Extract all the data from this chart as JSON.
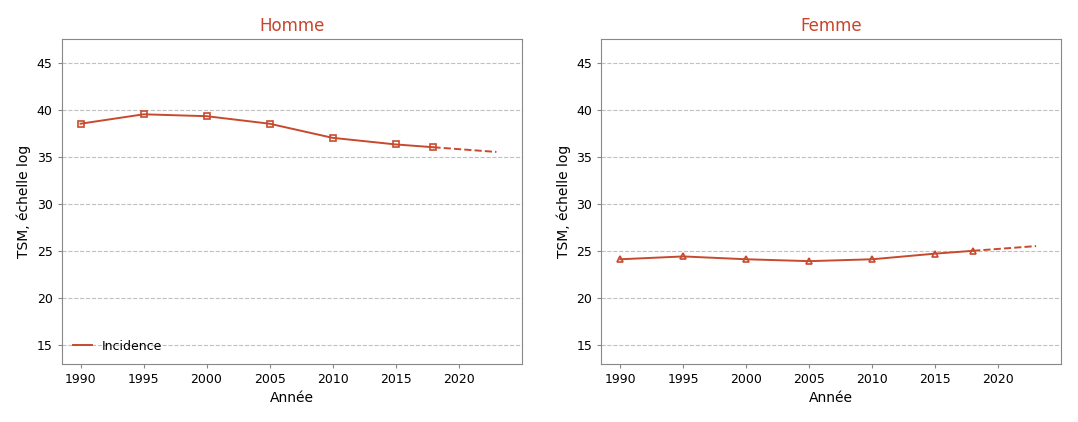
{
  "homme_title": "Homme",
  "femme_title": "Femme",
  "ylabel": "TSM, échelle log",
  "xlabel": "Année",
  "legend_label": "Incidence",
  "line_color": "#c84a2e",
  "homme_solid_years": [
    1990,
    1995,
    2000,
    2005,
    2010,
    2015,
    2018
  ],
  "homme_solid_values": [
    38.5,
    39.5,
    39.3,
    38.5,
    37.0,
    36.3,
    36.0
  ],
  "homme_dashed_years": [
    2018,
    2023
  ],
  "homme_dashed_values": [
    36.0,
    35.5
  ],
  "femme_solid_years": [
    1990,
    1995,
    2000,
    2005,
    2010,
    2015,
    2018
  ],
  "femme_solid_values": [
    24.1,
    24.4,
    24.1,
    23.9,
    24.1,
    24.7,
    25.0
  ],
  "femme_dashed_years": [
    2018,
    2023
  ],
  "femme_dashed_values": [
    25.0,
    25.5
  ],
  "yticks": [
    15,
    20,
    25,
    30,
    35,
    40,
    45
  ],
  "ylim": [
    13.0,
    47.5
  ],
  "xlim": [
    1988.5,
    2025
  ],
  "xticks": [
    1990,
    1995,
    2000,
    2005,
    2010,
    2015,
    2020
  ],
  "grid_color": "#c0c0c0",
  "background_color": "#ffffff",
  "title_color": "#c8442a",
  "marker_homme": "s",
  "marker_femme": "^",
  "marker_size": 5,
  "linewidth": 1.4,
  "title_fontsize": 12,
  "label_fontsize": 10,
  "tick_fontsize": 9
}
